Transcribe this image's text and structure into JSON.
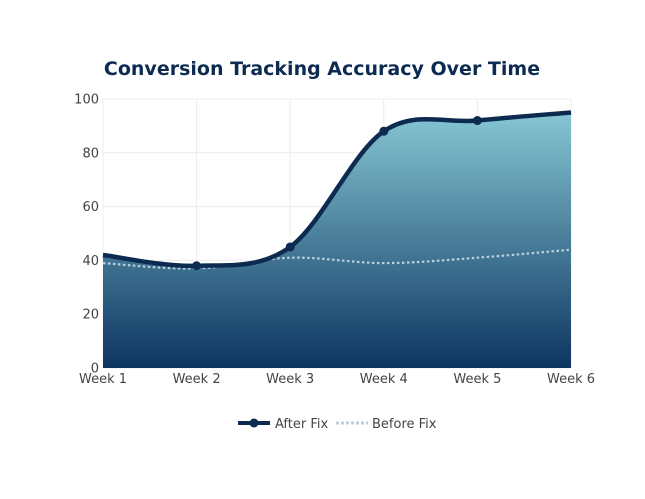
{
  "chart_data": {
    "type": "area",
    "title": "Conversion Tracking Accuracy Over Time",
    "xlabel": "",
    "ylabel": "",
    "categories": [
      "Week 1",
      "Week 2",
      "Week 3",
      "Week 4",
      "Week 5",
      "Week 6"
    ],
    "ylim": [
      0,
      100
    ],
    "yticks": [
      0,
      20,
      40,
      60,
      80,
      100
    ],
    "grid": true,
    "legend_position": "bottom",
    "series": [
      {
        "name": "After Fix",
        "values": [
          42,
          38,
          45,
          88,
          92,
          95
        ],
        "color": "#0d2b50",
        "style": "solid-with-markers-filled-area"
      },
      {
        "name": "Before Fix",
        "values": [
          39,
          37,
          41,
          39,
          41,
          44
        ],
        "color": "#bcd0e0",
        "style": "dotted"
      }
    ],
    "fill_gradient": {
      "top": "#86c6d3",
      "bottom": "#0d3561"
    }
  }
}
